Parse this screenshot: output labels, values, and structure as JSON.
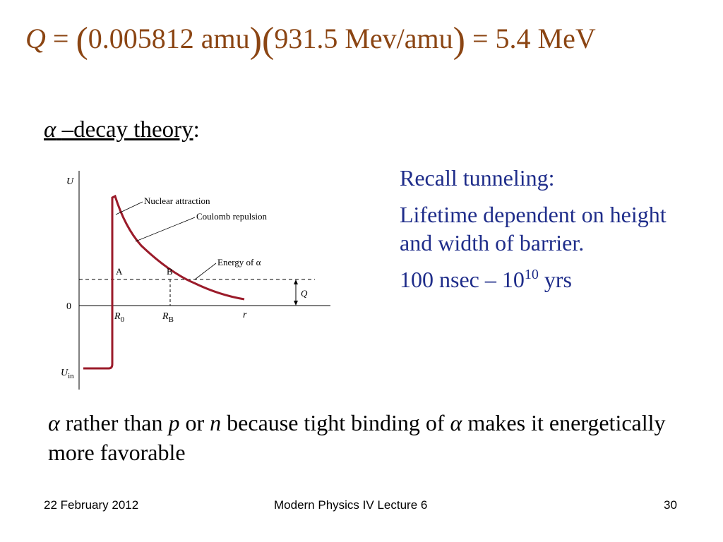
{
  "equation": {
    "q_symbol": "Q",
    "eq1": "=",
    "term1": "0.005812 amu",
    "term2": "931.5 Mev/amu",
    "eq2": "=",
    "result": "5.4 MeV"
  },
  "heading": {
    "alpha": "α",
    "underlined": "–decay theory",
    "suffix": ":"
  },
  "diagram": {
    "y_axis_label": "U",
    "zero_label": "0",
    "uin_label": "U",
    "uin_sub": "in",
    "nuclear_attraction": "Nuclear attraction",
    "coulomb_repulsion": "Coulomb repulsion",
    "energy_of_alpha": "Energy of α",
    "point_a": "A",
    "point_b": "B",
    "q_label": "Q",
    "r0_label": "R",
    "r0_sub": "0",
    "rb_label": "R",
    "rb_sub": "B",
    "r_label": "r",
    "curve_color": "#9B1B2A"
  },
  "right_col": {
    "line1": "Recall tunneling:",
    "line2": "Lifetime dependent on height and width of barrier.",
    "line3_pre": "100 nsec – 10",
    "line3_sup": "10",
    "line3_post": " yrs"
  },
  "bottom": {
    "alpha1": "α",
    "t1": " rather than ",
    "p": "p",
    "t2": " or ",
    "n": "n",
    "t3": " because tight binding of ",
    "alpha2": "α",
    "t4": " makes it energetically more favorable"
  },
  "footer": {
    "date": "22 February 2012",
    "title": "Modern Physics IV Lecture 6",
    "page": "30"
  }
}
